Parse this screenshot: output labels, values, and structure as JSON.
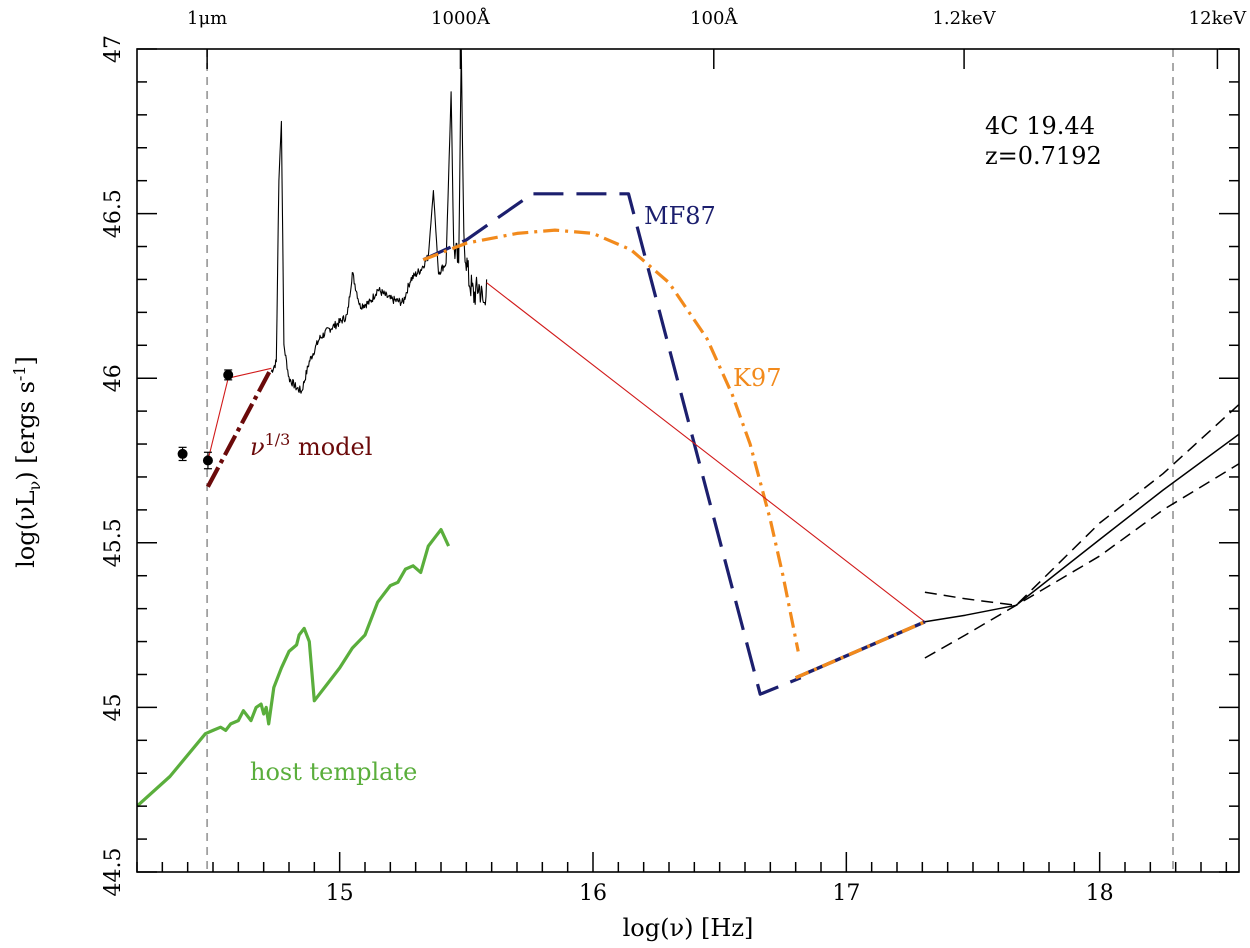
{
  "chart_data": {
    "type": "line",
    "title": "",
    "xlabel": "log(ν) [Hz]",
    "ylabel": "log(νL",
    "ylabel_sub": "ν",
    "ylabel_unit_a": ") [ergs s",
    "ylabel_unit_sup": "-1",
    "ylabel_unit_b": "]",
    "xlim": [
      14.2,
      18.55
    ],
    "ylim": [
      44.5,
      47.0
    ],
    "x_ticks": [
      "15",
      "16",
      "17",
      "18"
    ],
    "y_ticks": [
      "44.5",
      "45",
      "45.5",
      "46",
      "46.5",
      "47"
    ],
    "top_axis_labels": [
      {
        "text": "1μm",
        "x": 14.4768
      },
      {
        "text": "1000Å",
        "x": 15.4768
      },
      {
        "text": "100Å",
        "x": 16.4768
      },
      {
        "text": "1.2keV",
        "x": 17.4648
      },
      {
        "text": "12keV",
        "x": 18.4648
      }
    ],
    "vertical_reference_lines": [
      14.4768,
      18.2895
    ],
    "annotation": {
      "object": "4C 19.44",
      "redshift": "z=0.7192"
    },
    "legend_labels": [
      {
        "text": "MF87",
        "color": "#1c1f6e"
      },
      {
        "text": "K97",
        "color": "#f28a1c"
      },
      {
        "text": "ν",
        "sup": "1/3",
        "rest": " model",
        "color": "#6b0a0a"
      },
      {
        "text": "host template",
        "color": "#5aae3c"
      }
    ],
    "colors": {
      "spectrum": "#000000",
      "mf87": "#1c1f6e",
      "k97": "#f28a1c",
      "nu13_model": "#6b0a0a",
      "interpolation": "#d11a1a",
      "host_template": "#5aae3c",
      "reference_line": "#a0a0a0"
    },
    "series": [
      {
        "name": "MF87",
        "style": "long-dash",
        "points": [
          [
            15.33,
            46.36
          ],
          [
            15.5,
            46.42
          ],
          [
            15.76,
            46.56
          ],
          [
            16.14,
            46.56
          ],
          [
            16.66,
            45.04
          ],
          [
            16.82,
            45.09
          ]
        ]
      },
      {
        "name": "K97",
        "style": "dash-dot",
        "points": [
          [
            15.33,
            46.36
          ],
          [
            15.5,
            46.41
          ],
          [
            15.7,
            46.44
          ],
          [
            15.85,
            46.45
          ],
          [
            16.0,
            46.44
          ],
          [
            16.15,
            46.39
          ],
          [
            16.3,
            46.29
          ],
          [
            16.45,
            46.12
          ],
          [
            16.55,
            45.95
          ],
          [
            16.62,
            45.8
          ],
          [
            16.7,
            45.57
          ],
          [
            16.75,
            45.4
          ],
          [
            16.81,
            45.17
          ]
        ]
      },
      {
        "name": "ν^1/3 model",
        "style": "dash-dot-thick",
        "points": [
          [
            14.48,
            45.67
          ],
          [
            14.73,
            46.03
          ]
        ]
      },
      {
        "name": "host template",
        "style": "solid-thick",
        "points": [
          [
            14.2,
            44.7
          ],
          [
            14.33,
            44.79
          ],
          [
            14.47,
            44.92
          ],
          [
            14.5,
            44.93
          ],
          [
            14.53,
            44.94
          ],
          [
            14.55,
            44.93
          ],
          [
            14.57,
            44.95
          ],
          [
            14.6,
            44.96
          ],
          [
            14.62,
            44.99
          ],
          [
            14.65,
            44.96
          ],
          [
            14.67,
            45.0
          ],
          [
            14.69,
            45.01
          ],
          [
            14.7,
            44.98
          ],
          [
            14.71,
            45.0
          ],
          [
            14.72,
            44.95
          ],
          [
            14.74,
            45.06
          ],
          [
            14.77,
            45.12
          ],
          [
            14.8,
            45.17
          ],
          [
            14.83,
            45.19
          ],
          [
            14.84,
            45.22
          ],
          [
            14.86,
            45.24
          ],
          [
            14.88,
            45.2
          ],
          [
            14.9,
            45.02
          ],
          [
            14.95,
            45.07
          ],
          [
            15.0,
            45.12
          ],
          [
            15.05,
            45.18
          ],
          [
            15.1,
            45.22
          ],
          [
            15.15,
            45.32
          ],
          [
            15.2,
            45.37
          ],
          [
            15.23,
            45.38
          ],
          [
            15.26,
            45.42
          ],
          [
            15.29,
            45.43
          ],
          [
            15.32,
            45.41
          ],
          [
            15.35,
            45.49
          ],
          [
            15.38,
            45.52
          ],
          [
            15.4,
            45.54
          ],
          [
            15.43,
            45.49
          ]
        ]
      },
      {
        "name": "interpolation",
        "style": "thin",
        "points": [
          [
            14.48,
            45.75
          ],
          [
            14.56,
            46.0
          ],
          [
            14.73,
            46.03
          ]
        ]
      },
      {
        "name": "interpolation-uv-xray",
        "style": "thin",
        "points": [
          [
            15.58,
            46.29
          ],
          [
            17.31,
            45.26
          ]
        ]
      },
      {
        "name": "xray-extrapolation",
        "style": "blue-orange-dash",
        "points": [
          [
            16.8,
            45.09
          ],
          [
            17.31,
            45.26
          ]
        ]
      },
      {
        "name": "xray-powerlaw",
        "style": "solid",
        "points": [
          [
            17.31,
            45.26
          ],
          [
            17.47,
            45.28
          ],
          [
            17.67,
            45.31
          ],
          [
            18.0,
            45.51
          ],
          [
            18.25,
            45.66
          ],
          [
            18.55,
            45.83
          ]
        ]
      },
      {
        "name": "xray-upper-bound",
        "style": "dashed",
        "points": [
          [
            17.31,
            45.35
          ],
          [
            17.47,
            45.33
          ],
          [
            17.67,
            45.31
          ],
          [
            18.0,
            45.56
          ],
          [
            18.25,
            45.71
          ],
          [
            18.55,
            45.92
          ]
        ]
      },
      {
        "name": "xray-lower-bound",
        "style": "dashed",
        "points": [
          [
            17.31,
            45.15
          ],
          [
            17.47,
            45.22
          ],
          [
            17.67,
            45.31
          ],
          [
            18.0,
            45.46
          ],
          [
            18.25,
            45.6
          ],
          [
            18.55,
            45.74
          ]
        ]
      }
    ],
    "photometry": [
      {
        "x": 14.38,
        "y": 45.77,
        "err": 0.02
      },
      {
        "x": 14.48,
        "y": 45.75,
        "err": 0.025
      },
      {
        "x": 14.56,
        "y": 46.01,
        "err": 0.015
      }
    ],
    "spectrum_anchors": [
      [
        14.73,
        46.02
      ],
      [
        14.75,
        46.05
      ],
      [
        14.76,
        46.6
      ],
      [
        14.77,
        46.78
      ],
      [
        14.78,
        46.1
      ],
      [
        14.8,
        46.0
      ],
      [
        14.83,
        45.97
      ],
      [
        14.85,
        45.96
      ],
      [
        14.88,
        46.05
      ],
      [
        14.92,
        46.12
      ],
      [
        14.96,
        46.15
      ],
      [
        15.0,
        46.17
      ],
      [
        15.03,
        46.19
      ],
      [
        15.05,
        46.32
      ],
      [
        15.08,
        46.22
      ],
      [
        15.12,
        46.23
      ],
      [
        15.15,
        46.27
      ],
      [
        15.2,
        46.24
      ],
      [
        15.25,
        46.23
      ],
      [
        15.28,
        46.3
      ],
      [
        15.32,
        46.33
      ],
      [
        15.35,
        46.37
      ],
      [
        15.37,
        46.57
      ],
      [
        15.39,
        46.32
      ],
      [
        15.42,
        46.35
      ],
      [
        15.44,
        46.87
      ],
      [
        15.45,
        46.4
      ],
      [
        15.47,
        46.35
      ],
      [
        15.48,
        47.0
      ],
      [
        15.49,
        46.42
      ],
      [
        15.51,
        46.3
      ],
      [
        15.53,
        46.25
      ],
      [
        15.55,
        46.28
      ],
      [
        15.57,
        46.22
      ],
      [
        15.58,
        46.3
      ]
    ]
  }
}
